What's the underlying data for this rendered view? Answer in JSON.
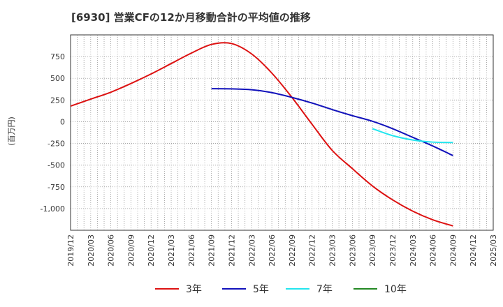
{
  "chart_data": {
    "type": "line",
    "title": "[6930]  営業CFの12か月移動合計の平均値の推移",
    "ylabel": "(百万円)",
    "xlabel": "",
    "x_ticks": [
      "2019/12",
      "2020/03",
      "2020/06",
      "2020/09",
      "2020/12",
      "2021/03",
      "2021/06",
      "2021/09",
      "2021/12",
      "2022/03",
      "2022/06",
      "2022/09",
      "2022/12",
      "2023/03",
      "2023/06",
      "2023/09",
      "2023/12",
      "2024/03",
      "2024/06",
      "2024/09",
      "2024/12",
      "2025/03"
    ],
    "y_ticks": [
      {
        "value": 750,
        "label": "750"
      },
      {
        "value": 500,
        "label": "500"
      },
      {
        "value": 250,
        "label": "250"
      },
      {
        "value": 0,
        "label": "0"
      },
      {
        "value": -250,
        "label": "-250"
      },
      {
        "value": -500,
        "label": "-500"
      },
      {
        "value": -750,
        "label": "-750"
      },
      {
        "value": -1000,
        "label": "-1,000"
      }
    ],
    "ylim": [
      -1250,
      1000
    ],
    "grid": true,
    "legend_position": "bottom",
    "series": [
      {
        "name": "3年",
        "color": "#dd1111",
        "x": [
          "2019/12",
          "2020/03",
          "2020/06",
          "2020/09",
          "2020/12",
          "2021/03",
          "2021/06",
          "2021/09",
          "2021/12",
          "2022/03",
          "2022/06",
          "2022/09",
          "2022/12",
          "2023/03",
          "2023/06",
          "2023/09",
          "2023/12",
          "2024/03",
          "2024/06",
          "2024/09"
        ],
        "values": [
          180,
          260,
          340,
          440,
          550,
          670,
          790,
          890,
          900,
          780,
          560,
          280,
          -30,
          -330,
          -540,
          -740,
          -900,
          -1030,
          -1130,
          -1200
        ]
      },
      {
        "name": "5年",
        "color": "#1111bb",
        "x": [
          "2021/09",
          "2021/12",
          "2022/03",
          "2022/06",
          "2022/09",
          "2022/12",
          "2023/03",
          "2023/06",
          "2023/09",
          "2023/12",
          "2024/03",
          "2024/06",
          "2024/09"
        ],
        "values": [
          380,
          378,
          368,
          335,
          280,
          215,
          140,
          70,
          5,
          -80,
          -180,
          -280,
          -390
        ]
      },
      {
        "name": "7年",
        "color": "#22e5ee",
        "x": [
          "2023/09",
          "2023/12",
          "2024/03",
          "2024/06",
          "2024/09"
        ],
        "values": [
          -80,
          -160,
          -210,
          -235,
          -240
        ]
      },
      {
        "name": "10年",
        "color": "#228822",
        "x": [],
        "values": []
      }
    ]
  }
}
